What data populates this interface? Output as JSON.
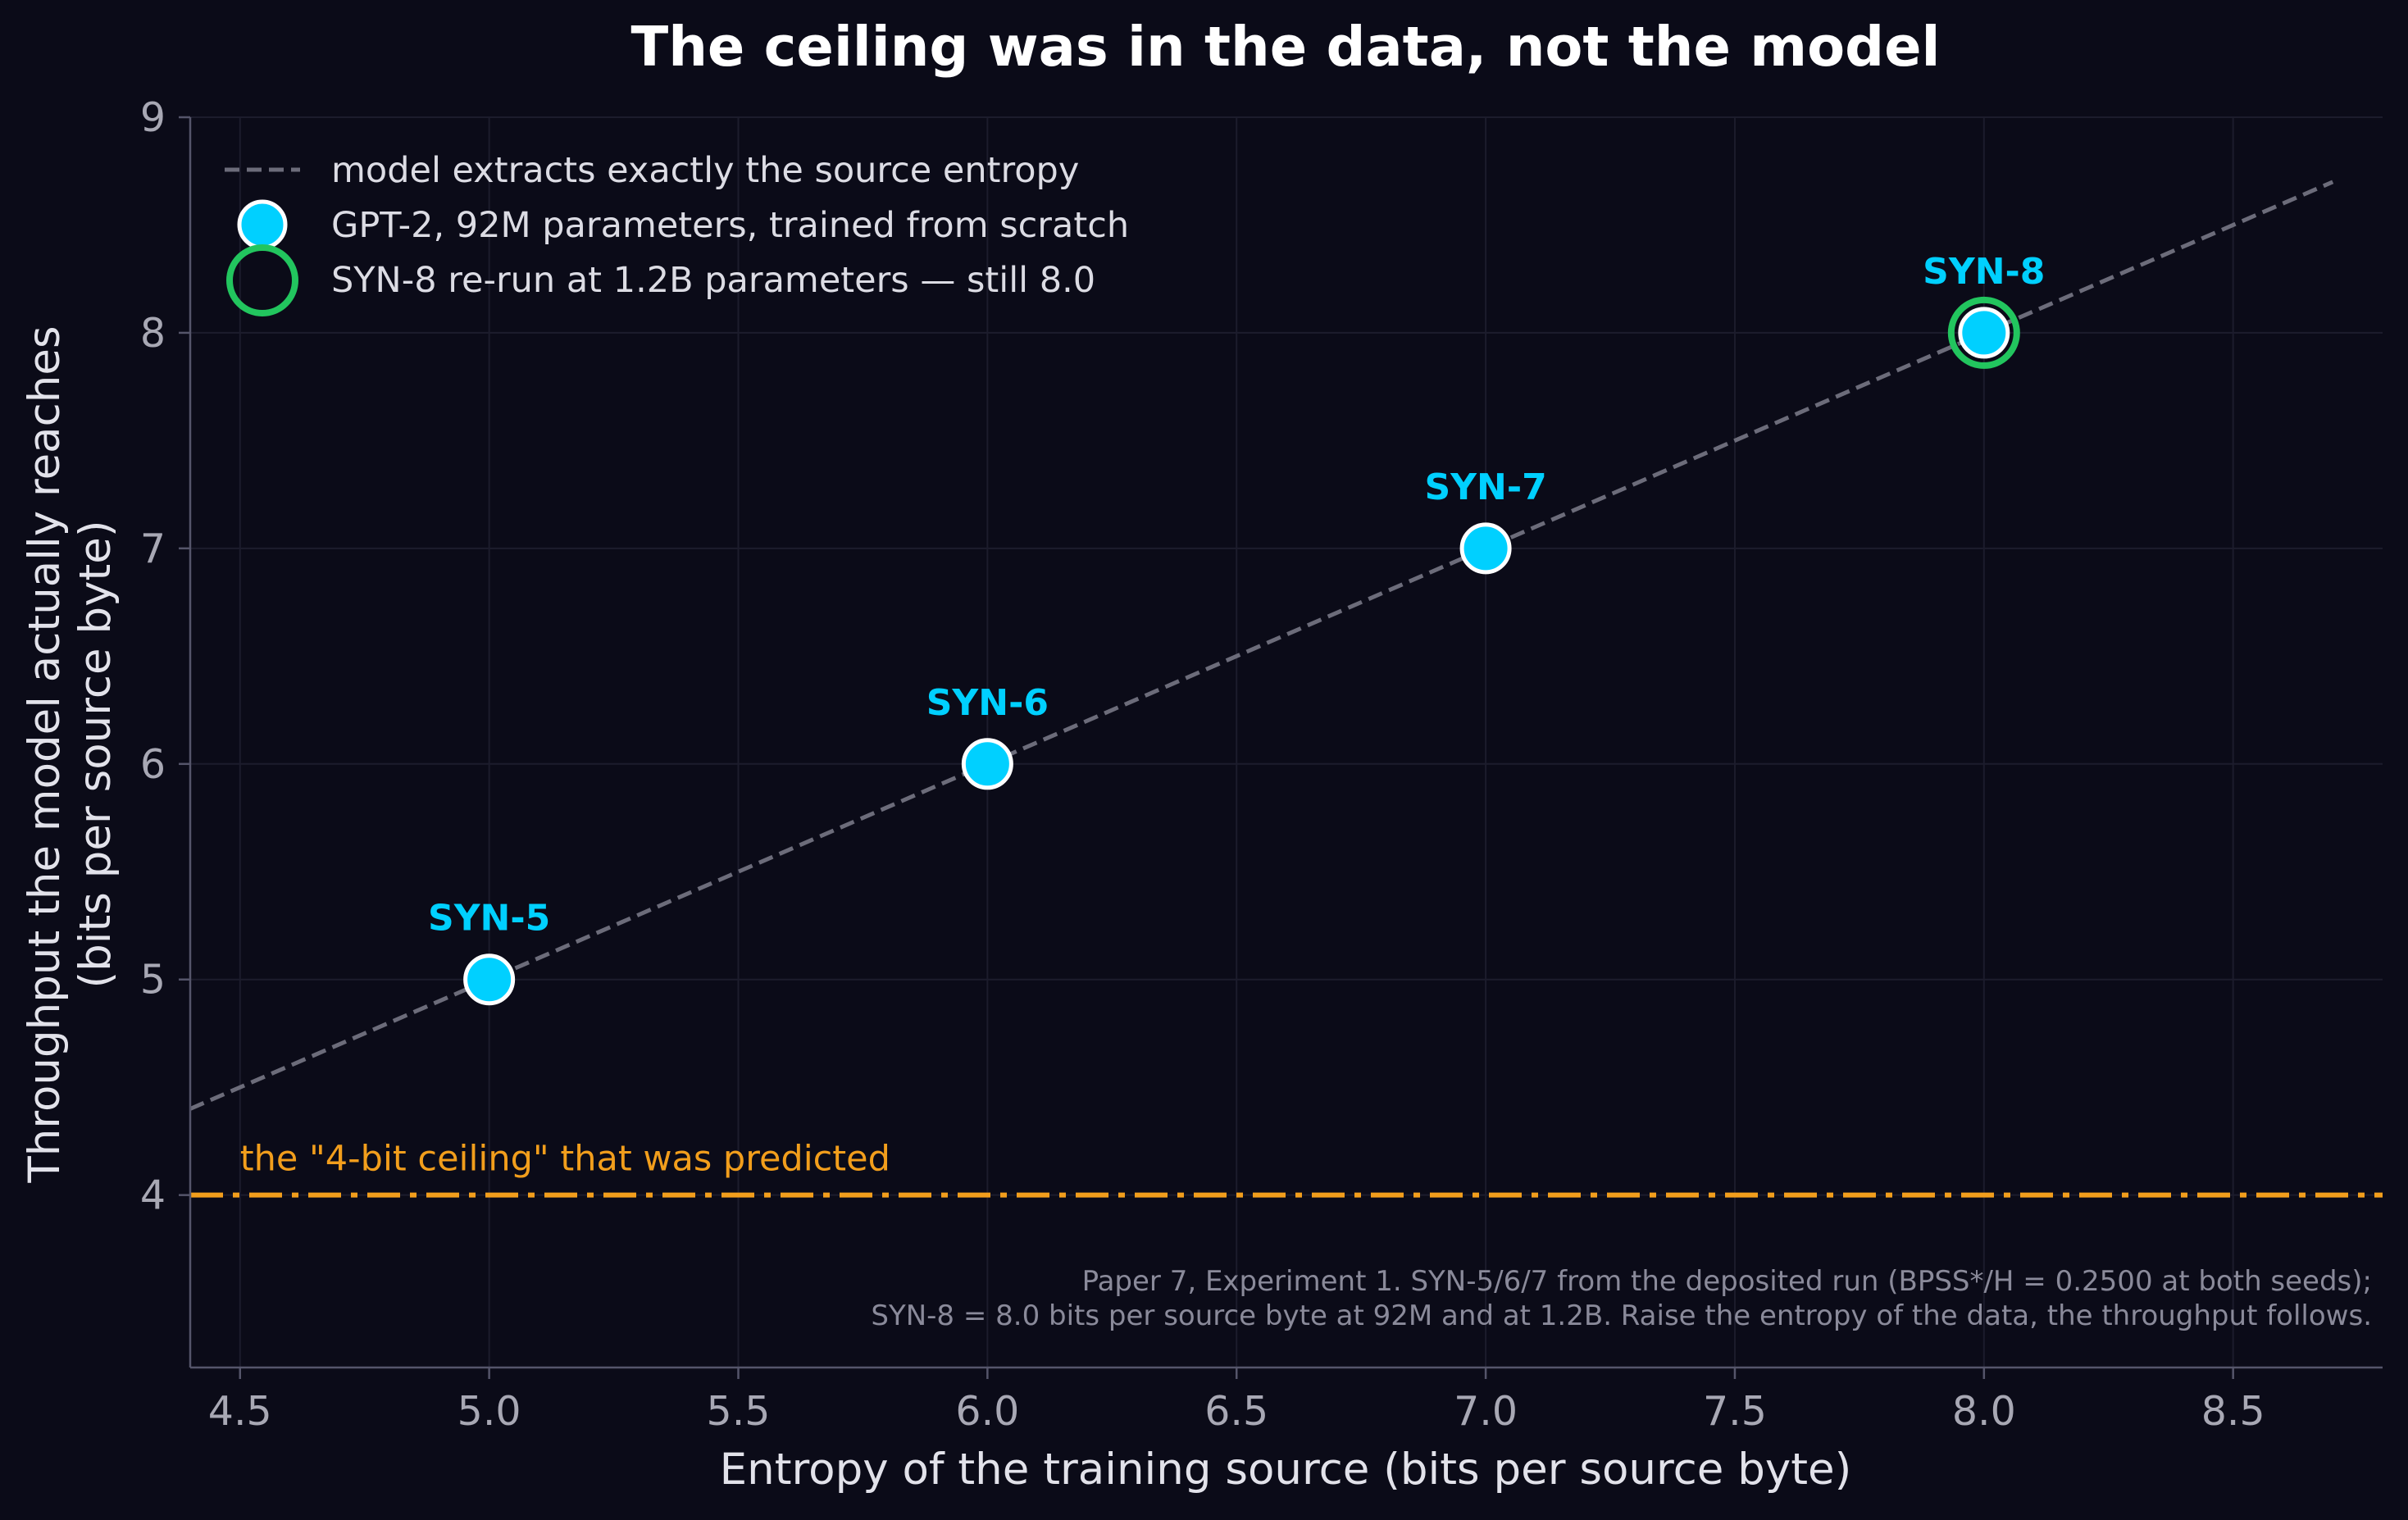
{
  "chart_data": {
    "type": "scatter",
    "title": "The ceiling was in the data, not the model",
    "xlabel": "Entropy of the training source  (bits per source byte)",
    "ylabel_lines": [
      "Throughput the model actually reaches",
      "(bits per source byte)"
    ],
    "xlim": [
      4.4,
      8.8
    ],
    "ylim": [
      3.2,
      9.0
    ],
    "xticks": [
      4.5,
      5.0,
      5.5,
      6.0,
      6.5,
      7.0,
      7.5,
      8.0,
      8.5
    ],
    "xtick_labels": [
      "4.5",
      "5.0",
      "5.5",
      "6.0",
      "6.5",
      "7.0",
      "7.5",
      "8.0",
      "8.5"
    ],
    "yticks": [
      4,
      5,
      6,
      7,
      8,
      9
    ],
    "ytick_labels": [
      "4",
      "5",
      "6",
      "7",
      "8",
      "9"
    ],
    "grid": true,
    "legend_position": "top-left",
    "series": [
      {
        "kind": "dashed-line",
        "name": "model extracts exactly the source entropy",
        "color": "#6c6c7a",
        "x": [
          4.4,
          8.7
        ],
        "y": [
          4.4,
          8.7
        ]
      },
      {
        "kind": "points",
        "name": "GPT-2, 92M parameters, trained from scratch",
        "color": "#00d0ff",
        "points": [
          {
            "x": 5.0,
            "y": 5.0,
            "label": "SYN-5"
          },
          {
            "x": 6.0,
            "y": 6.0,
            "label": "SYN-6"
          },
          {
            "x": 7.0,
            "y": 7.0,
            "label": "SYN-7"
          },
          {
            "x": 8.0,
            "y": 8.0,
            "label": "SYN-8"
          }
        ]
      },
      {
        "kind": "ring",
        "name": "SYN-8 re-run at 1.2B parameters — still 8.0",
        "color": "#22c55e",
        "points": [
          {
            "x": 8.0,
            "y": 8.0
          }
        ]
      }
    ],
    "reference_line": {
      "y": 4.0,
      "label": "the \"4-bit ceiling\" that was predicted",
      "color": "#f29e1c"
    },
    "footnote": [
      "Paper 7, Experiment 1. SYN-5/6/7 from the deposited run (BPSS*/H = 0.2500 at both seeds);",
      "SYN-8 = 8.0 bits per source byte at 92M and at 1.2B. Raise the entropy of the data, the throughput follows."
    ]
  },
  "colors": {
    "background": "#0b0b18",
    "grid": "#1c1c2c",
    "axis": "#55556a",
    "point_label": "#00d0ff",
    "marker_edge": "#ffffff"
  }
}
